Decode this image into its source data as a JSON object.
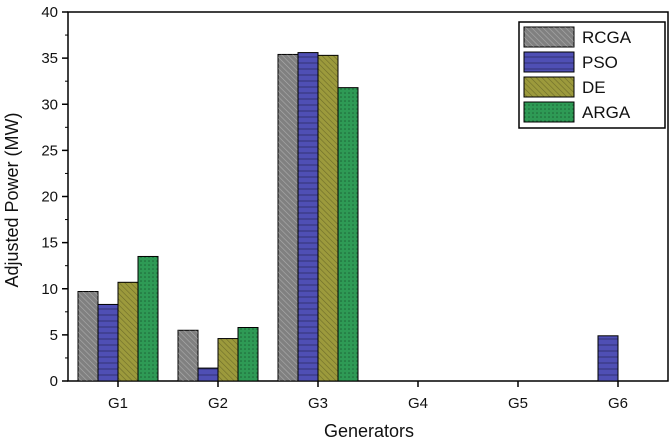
{
  "chart_data": {
    "type": "bar",
    "title": "",
    "xlabel": "Generators",
    "ylabel": "Adjusted Power (MW)",
    "categories": [
      "G1",
      "G2",
      "G3",
      "G4",
      "G5",
      "G6"
    ],
    "ylim": [
      0,
      40
    ],
    "yticks": [
      "0",
      "5",
      "10",
      "15",
      "20",
      "25",
      "30",
      "35",
      "40"
    ],
    "grid": false,
    "legend_position": "top-right",
    "series": [
      {
        "name": "RCGA",
        "color": "#808080",
        "values": [
          9.7,
          5.5,
          35.4,
          0,
          0,
          0
        ]
      },
      {
        "name": "PSO",
        "color": "#4f4fb4",
        "values": [
          8.3,
          1.4,
          35.6,
          0,
          0,
          4.9
        ]
      },
      {
        "name": "DE",
        "color": "#9c9a3c",
        "values": [
          10.7,
          4.6,
          35.3,
          0,
          0,
          0
        ]
      },
      {
        "name": "ARGA",
        "color": "#2e9a55",
        "values": [
          13.5,
          5.8,
          31.8,
          0,
          0,
          0
        ]
      }
    ]
  }
}
